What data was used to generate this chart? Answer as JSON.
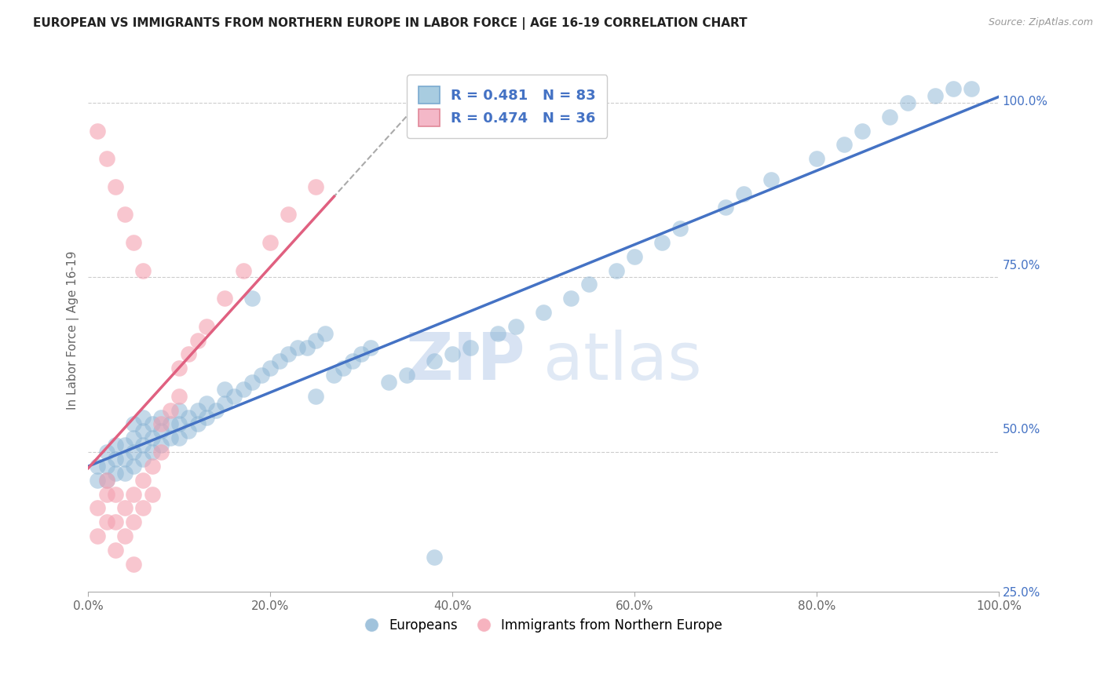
{
  "title": "EUROPEAN VS IMMIGRANTS FROM NORTHERN EUROPE IN LABOR FORCE | AGE 16-19 CORRELATION CHART",
  "source": "Source: ZipAtlas.com",
  "ylabel": "In Labor Force | Age 16-19",
  "xlabel": "",
  "xlim": [
    0.0,
    1.0
  ],
  "ylim": [
    0.3,
    1.05
  ],
  "ytick_positions": [
    0.25,
    0.5,
    0.75,
    1.0
  ],
  "ytick_labels": [
    "25.0%",
    "50.0%",
    "75.0%",
    "100.0%"
  ],
  "xtick_positions": [
    0.0,
    0.2,
    0.4,
    0.6,
    0.8,
    1.0
  ],
  "xtick_labels": [
    "0.0%",
    "20.0%",
    "40.0%",
    "60.0%",
    "80.0%",
    "100.0%"
  ],
  "blue_color": "#8ab4d4",
  "blue_line_color": "#4472c4",
  "pink_color": "#f4a0b0",
  "pink_line_color": "#e06080",
  "pink_dash_color": "#d0d0d0",
  "legend_R_blue": "R = 0.481",
  "legend_N_blue": "N = 83",
  "legend_R_pink": "R = 0.474",
  "legend_N_pink": "N = 36",
  "legend_label_blue": "Europeans",
  "legend_label_pink": "Immigrants from Northern Europe",
  "watermark": "ZIPatlas",
  "blue_scatter_x": [
    0.01,
    0.01,
    0.02,
    0.02,
    0.02,
    0.03,
    0.03,
    0.03,
    0.04,
    0.04,
    0.04,
    0.05,
    0.05,
    0.05,
    0.05,
    0.06,
    0.06,
    0.06,
    0.06,
    0.07,
    0.07,
    0.07,
    0.08,
    0.08,
    0.08,
    0.09,
    0.09,
    0.1,
    0.1,
    0.1,
    0.11,
    0.11,
    0.12,
    0.12,
    0.13,
    0.13,
    0.14,
    0.15,
    0.15,
    0.16,
    0.17,
    0.18,
    0.19,
    0.2,
    0.21,
    0.22,
    0.23,
    0.24,
    0.25,
    0.26,
    0.27,
    0.28,
    0.29,
    0.3,
    0.31,
    0.33,
    0.35,
    0.38,
    0.4,
    0.42,
    0.45,
    0.47,
    0.5,
    0.53,
    0.55,
    0.58,
    0.6,
    0.63,
    0.65,
    0.7,
    0.72,
    0.75,
    0.8,
    0.83,
    0.85,
    0.88,
    0.9,
    0.93,
    0.95,
    0.97,
    0.18,
    0.25,
    0.38
  ],
  "blue_scatter_y": [
    0.46,
    0.48,
    0.46,
    0.48,
    0.5,
    0.47,
    0.49,
    0.51,
    0.47,
    0.49,
    0.51,
    0.48,
    0.5,
    0.52,
    0.54,
    0.49,
    0.51,
    0.53,
    0.55,
    0.5,
    0.52,
    0.54,
    0.51,
    0.53,
    0.55,
    0.52,
    0.54,
    0.52,
    0.54,
    0.56,
    0.53,
    0.55,
    0.54,
    0.56,
    0.55,
    0.57,
    0.56,
    0.57,
    0.59,
    0.58,
    0.59,
    0.6,
    0.61,
    0.62,
    0.63,
    0.64,
    0.65,
    0.65,
    0.66,
    0.67,
    0.61,
    0.62,
    0.63,
    0.64,
    0.65,
    0.6,
    0.61,
    0.63,
    0.64,
    0.65,
    0.67,
    0.68,
    0.7,
    0.72,
    0.74,
    0.76,
    0.78,
    0.8,
    0.82,
    0.85,
    0.87,
    0.89,
    0.92,
    0.94,
    0.96,
    0.98,
    1.0,
    1.01,
    1.02,
    1.02,
    0.72,
    0.58,
    0.35
  ],
  "pink_scatter_x": [
    0.01,
    0.01,
    0.02,
    0.02,
    0.02,
    0.03,
    0.03,
    0.03,
    0.04,
    0.04,
    0.05,
    0.05,
    0.06,
    0.06,
    0.07,
    0.07,
    0.08,
    0.08,
    0.09,
    0.1,
    0.1,
    0.11,
    0.12,
    0.13,
    0.15,
    0.17,
    0.2,
    0.22,
    0.25,
    0.05,
    0.01,
    0.02,
    0.03,
    0.04,
    0.05,
    0.06
  ],
  "pink_scatter_y": [
    0.38,
    0.42,
    0.4,
    0.44,
    0.46,
    0.36,
    0.4,
    0.44,
    0.38,
    0.42,
    0.4,
    0.44,
    0.42,
    0.46,
    0.44,
    0.48,
    0.5,
    0.54,
    0.56,
    0.58,
    0.62,
    0.64,
    0.66,
    0.68,
    0.72,
    0.76,
    0.8,
    0.84,
    0.88,
    0.34,
    0.96,
    0.92,
    0.88,
    0.84,
    0.8,
    0.76
  ],
  "grid_color": "#cccccc",
  "background_color": "#ffffff"
}
